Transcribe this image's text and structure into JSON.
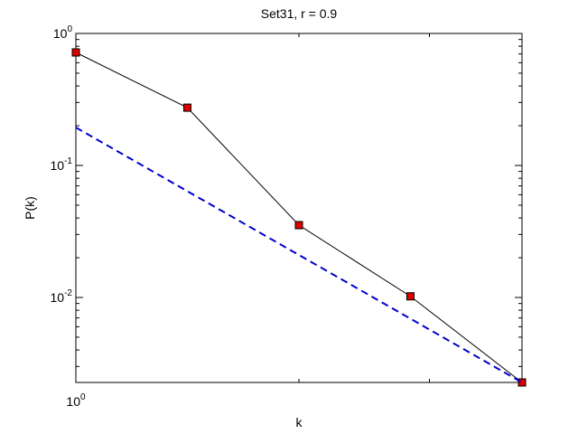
{
  "chart_data": {
    "type": "line",
    "title": "Set31, r = 0.9",
    "x_label": "k",
    "y_label": "P(k)",
    "x_scale": "log",
    "y_scale": "log",
    "x": [
      1,
      1.414,
      2,
      2.828,
      4
    ],
    "series": [
      {
        "color": "#000000",
        "marker_color": "#dd0000",
        "marker": "square",
        "line_style": "solid",
        "values": [
          0.718,
          0.274,
          0.0353,
          0.0102,
          0.00227
        ]
      },
      {
        "color": "#0000cc",
        "line_style": "dashed",
        "x": [
          1,
          4
        ],
        "values": [
          0.194,
          0.00227
        ]
      }
    ],
    "xlim": [
      1,
      4
    ],
    "ylim": [
      0.00227,
      1
    ],
    "xticks": [
      {
        "value": 1,
        "label": "10^0"
      }
    ],
    "yticks": [
      {
        "value": 0.01,
        "label": "10^-2"
      },
      {
        "value": 0.1,
        "label": "10^-1"
      },
      {
        "value": 1,
        "label": "10^0"
      }
    ]
  }
}
